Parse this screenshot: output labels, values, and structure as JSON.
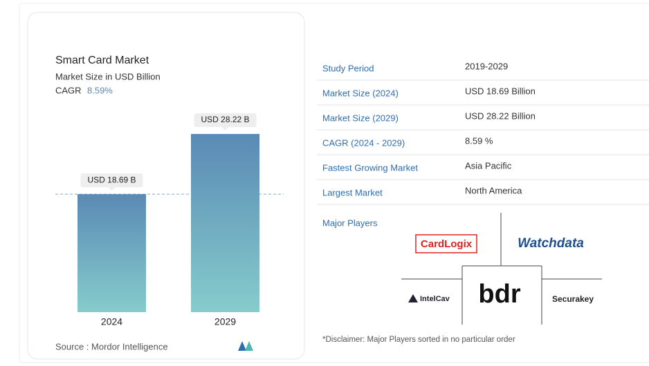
{
  "chart_data": {
    "type": "bar",
    "title": "Smart Card Market",
    "subtitle": "Market Size in USD Billion",
    "cagr_label": "CAGR",
    "cagr_value": "8.59%",
    "categories": [
      "2024",
      "2029"
    ],
    "values": [
      18.69,
      28.22
    ],
    "value_labels": [
      "USD 18.69 B",
      "USD 28.22 B"
    ],
    "colors": [
      "#5a8ab5",
      "#86cccb"
    ],
    "source": "Source :  Mordor Intelligence"
  },
  "table": {
    "rows": [
      [
        "Study Period",
        "2019-2029"
      ],
      [
        "Market Size (2024)",
        "USD 18.69 Billion"
      ],
      [
        "Market Size (2029)",
        "USD 28.22 Billion"
      ],
      [
        "CAGR (2024 - 2029)",
        "8.59 %"
      ],
      [
        "Fastest Growing Market",
        "Asia Pacific"
      ],
      [
        "Largest Market",
        "North America"
      ]
    ]
  },
  "players": {
    "title": "Major Players",
    "names": [
      "CardLogix",
      "Watchdata",
      "IntelCav",
      "bdr",
      "Securakey"
    ],
    "disclaimer": "*Disclaimer: Major Players sorted in no particular order"
  }
}
